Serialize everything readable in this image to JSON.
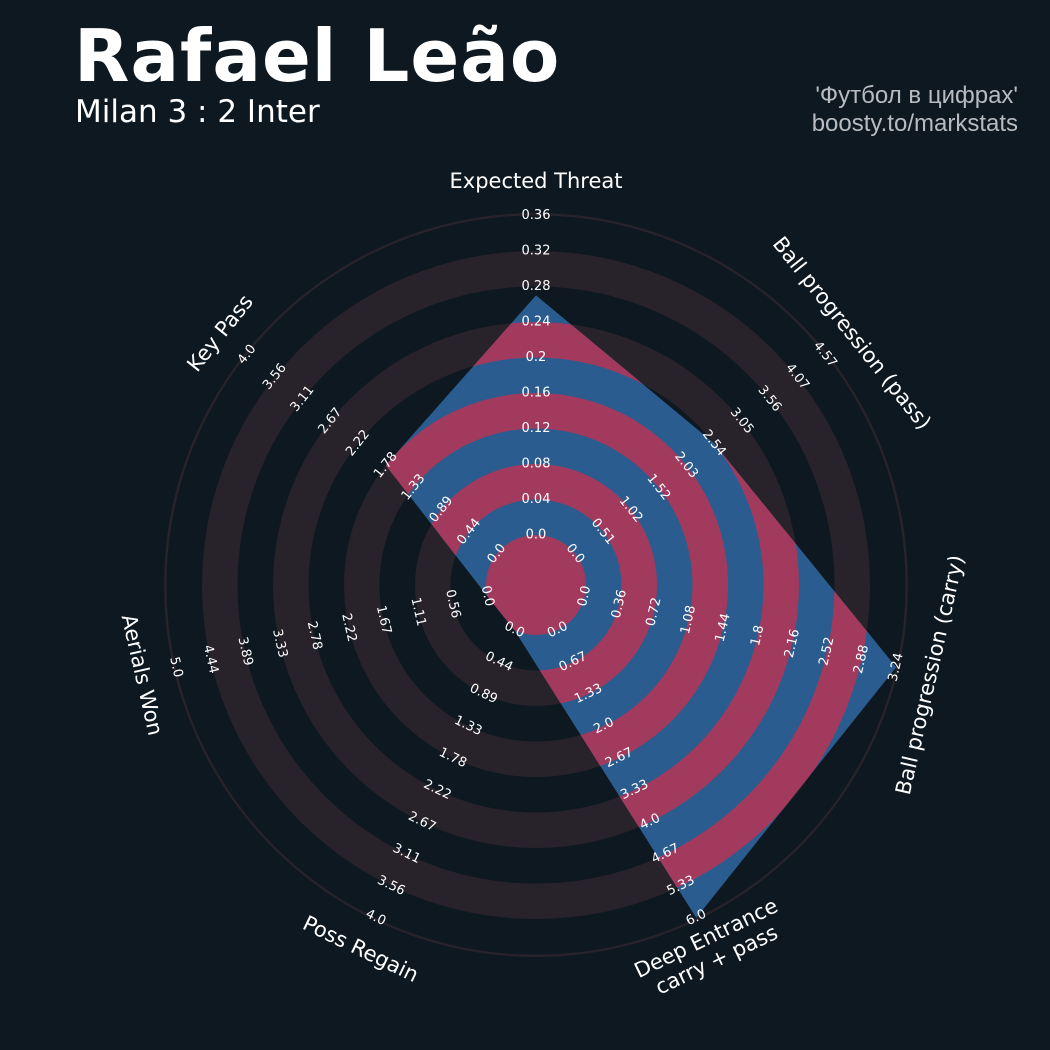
{
  "header": {
    "title": "Rafael Leão",
    "subtitle": "Milan 3 : 2 Inter",
    "credit_line1": "'Футбол в цифрах'",
    "credit_line2": "boosty.to/markstats"
  },
  "colors": {
    "background": "#0e1820",
    "ring_dark": "#28222a",
    "ring_pink": "#a23a5e",
    "ring_light_center": "#0e1820",
    "value_fill": "#2a5c8f",
    "text": "#ffffff",
    "credit": "#b8bcc0"
  },
  "chart_data": {
    "type": "radar",
    "title": "Rafael Leão",
    "axes": [
      {
        "label": "Expected Threat",
        "ticks": [
          "0.0",
          "0.04",
          "0.08",
          "0.12",
          "0.16",
          "0.2",
          "0.24",
          "0.28",
          "0.32",
          "0.36"
        ],
        "range": [
          0,
          0.36
        ],
        "value": 0.27
      },
      {
        "label": "Ball progression (pass)",
        "ticks": [
          "0.0",
          "0.51",
          "1.02",
          "1.52",
          "2.03",
          "2.54",
          "3.05",
          "3.56",
          "4.07",
          "4.57"
        ],
        "range": [
          0,
          4.57
        ],
        "value": 2.54
      },
      {
        "label": "Ball progression (carry)",
        "ticks": [
          "0.0",
          "0.36",
          "0.72",
          "1.08",
          "1.44",
          "1.8",
          "2.16",
          "2.52",
          "2.88",
          "3.24"
        ],
        "range": [
          0,
          3.24
        ],
        "value": 3.24
      },
      {
        "label": "Deep Entrance\ncarry + pass",
        "ticks": [
          "0.0",
          "0.67",
          "1.33",
          "2.0",
          "2.67",
          "3.33",
          "4.0",
          "4.67",
          "5.33",
          "6.0"
        ],
        "range": [
          0,
          6.0
        ],
        "value": 6.0
      },
      {
        "label": "Poss Regain",
        "ticks": [
          "0.0",
          "0.44",
          "0.89",
          "1.33",
          "1.78",
          "2.22",
          "2.67",
          "3.11",
          "3.56",
          "4.0"
        ],
        "range": [
          0,
          4.0
        ],
        "value": 0.0
      },
      {
        "label": "Aerials Won",
        "ticks": [
          "0.0",
          "0.56",
          "1.11",
          "1.67",
          "2.22",
          "2.78",
          "3.33",
          "3.89",
          "4.44",
          "5.0"
        ],
        "range": [
          0,
          5.0
        ],
        "value": 0.0
      },
      {
        "label": "Key Pass",
        "ticks": [
          "0.0",
          "0.44",
          "0.89",
          "1.33",
          "1.78",
          "2.22",
          "2.67",
          "3.11",
          "3.56",
          "4.0"
        ],
        "range": [
          0,
          4.0
        ],
        "value": 1.78
      }
    ]
  }
}
